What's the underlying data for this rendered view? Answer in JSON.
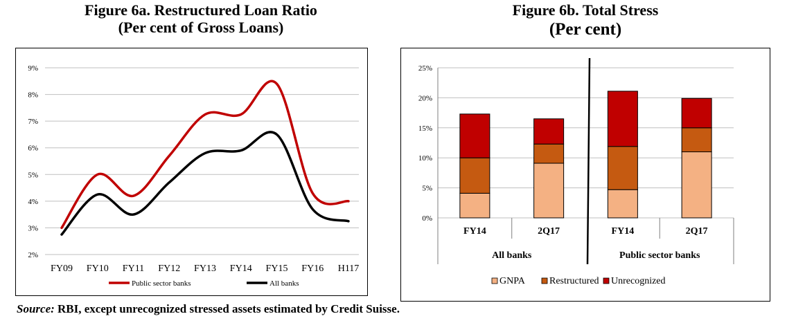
{
  "figure_a": {
    "title_line1": "Figure 6a. Restructured Loan Ratio",
    "title_line2": "(Per cent of Gross Loans)"
  },
  "figure_b": {
    "title_line1": "Figure 6b. Total Stress",
    "title_line2": "(Per cent)"
  },
  "source": {
    "label": "Source:",
    "text": " RBI, except unrecognized stressed assets estimated by Credit Suisse."
  },
  "colors": {
    "public_line": "#c00000",
    "all_line": "#000000",
    "gnpa": "#f4b183",
    "restructured": "#c55a11",
    "unrecognized": "#c00000",
    "grid": "#bfbfbf"
  },
  "chart_data": [
    {
      "type": "line",
      "title": "Figure 6a. Restructured Loan Ratio",
      "subtitle": "(Per cent of Gross Loans)",
      "categories": [
        "FY09",
        "FY10",
        "FY11",
        "FY12",
        "FY13",
        "FY14",
        "FY15",
        "FY16",
        "H117"
      ],
      "series": [
        {
          "name": "Public sector banks",
          "values": [
            3.0,
            5.0,
            4.2,
            5.7,
            7.25,
            7.25,
            8.4,
            4.3,
            4.0
          ]
        },
        {
          "name": "All banks",
          "values": [
            2.75,
            4.25,
            3.5,
            4.7,
            5.8,
            5.9,
            6.5,
            3.7,
            3.25
          ]
        }
      ],
      "yticks": [
        "2%",
        "3%",
        "4%",
        "5%",
        "6%",
        "7%",
        "8%",
        "9%"
      ],
      "ylim": [
        2,
        9
      ],
      "grid": true,
      "legend": "bottom"
    },
    {
      "type": "bar",
      "stacked": true,
      "title": "Figure 6b. Total Stress",
      "subtitle": "(Per cent)",
      "categories": [
        "FY14",
        "2Q17",
        "FY14",
        "2Q17"
      ],
      "groups": [
        "All banks",
        "Public sector banks"
      ],
      "series": [
        {
          "name": "GNPA",
          "values": [
            4.1,
            9.1,
            4.7,
            11.0
          ]
        },
        {
          "name": "Restructured",
          "values": [
            5.9,
            3.2,
            7.2,
            4.0
          ]
        },
        {
          "name": "Unrecognized",
          "values": [
            7.3,
            4.2,
            9.2,
            4.9
          ]
        }
      ],
      "yticks": [
        "0%",
        "5%",
        "10%",
        "15%",
        "20%",
        "25%"
      ],
      "ylim": [
        0,
        25
      ],
      "grid": true,
      "legend": "bottom"
    }
  ]
}
